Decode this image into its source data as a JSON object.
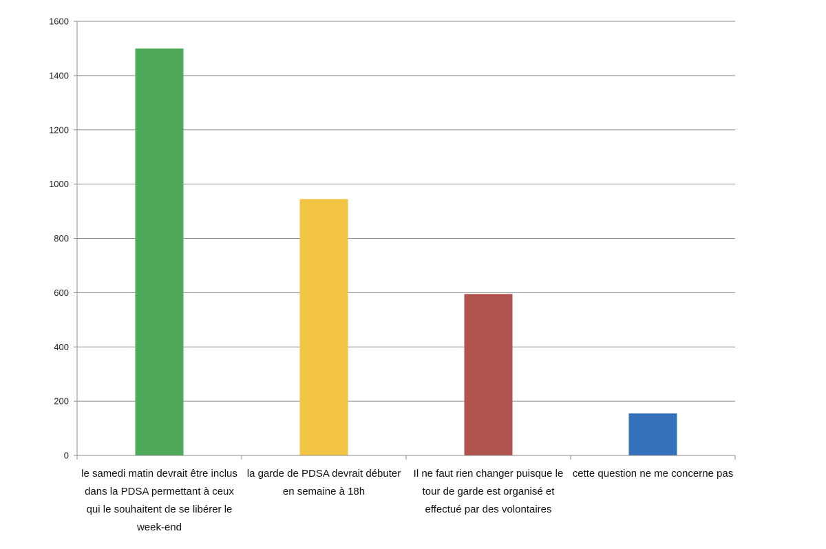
{
  "chart_data": {
    "type": "bar",
    "title": "",
    "xlabel": "",
    "ylabel": "",
    "ylim": [
      0,
      1600
    ],
    "yticks": [
      0,
      200,
      400,
      600,
      800,
      1000,
      1200,
      1400,
      1600
    ],
    "grid": true,
    "legend": "none",
    "categories": [
      "le samedi matin devrait être inclus dans la PDSA permettant à  ceux qui le souhaitent de se libérer le week-end",
      "la garde de PDSA devrait débuter en semaine à 18h",
      "Il ne faut rien changer puisque le tour de garde est organisé et effectué par des volontaires",
      "cette question ne me concerne pas"
    ],
    "values": [
      1500,
      945,
      595,
      155
    ],
    "colors": [
      "#4ea95a",
      "#f2c443",
      "#b0534f",
      "#3570bd"
    ]
  }
}
